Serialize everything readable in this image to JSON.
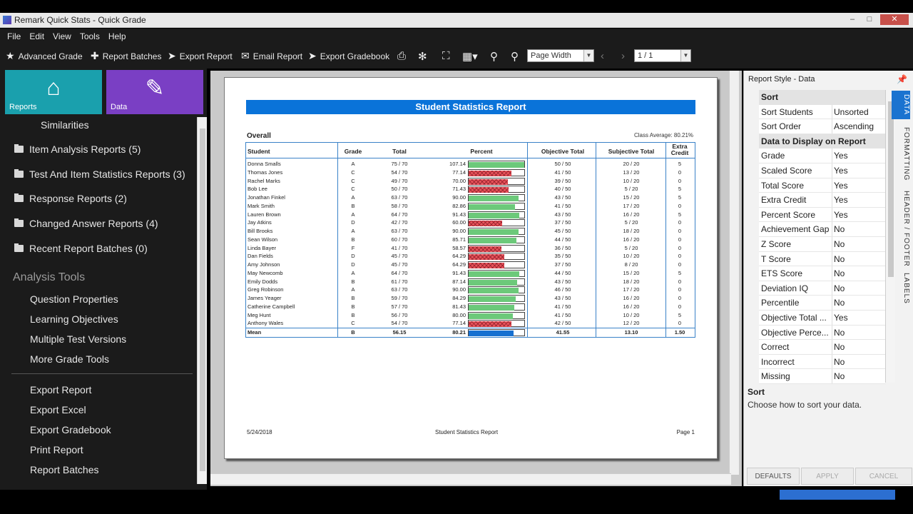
{
  "window": {
    "title": "Remark Quick Stats - Quick Grade"
  },
  "menu": [
    "File",
    "Edit",
    "View",
    "Tools",
    "Help"
  ],
  "toolbar": {
    "advanced_grade": "Advanced Grade",
    "report_batches": "Report Batches",
    "export_report": "Export Report",
    "email_report": "Email Report",
    "export_gradebook": "Export Gradebook",
    "zoom_mode": "Page Width",
    "page": "1 / 1"
  },
  "sidebar": {
    "tiles": [
      {
        "label": "Reports",
        "color": "#1aa0ad"
      },
      {
        "label": "Data",
        "color": "#7a3fc4"
      }
    ],
    "similarities": "Similarities",
    "folders": [
      "Item Analysis Reports (5)",
      "Test And Item Statistics Reports (3)",
      "Response Reports (2)",
      "Changed Answer Reports (4)",
      "Recent Report Batches (0)"
    ],
    "analysis_heading": "Analysis Tools",
    "analysis_items": [
      "Question Properties",
      "Learning Objectives",
      "Multiple Test Versions",
      "More Grade Tools"
    ],
    "export_items": [
      "Export Report",
      "Export Excel",
      "Export Gradebook",
      "Print Report",
      "Report Batches"
    ]
  },
  "report": {
    "title": "Student Statistics Report",
    "section": "Overall",
    "class_average": "Class Average: 80.21%",
    "columns": {
      "student": "Student",
      "grade": "Grade",
      "total": "Total",
      "percent": "Percent",
      "objective": "Objective Total",
      "subjective": "Subjective Total",
      "extra1": "Extra",
      "extra2": "Credit"
    },
    "rows": [
      {
        "name": "Donna Smalls",
        "grade": "A",
        "total": "75 / 70",
        "percent": "107.14",
        "pct": 1.0,
        "obj": "50 / 50",
        "subj": "20 / 20",
        "extra": "5"
      },
      {
        "name": "Thomas Jones",
        "grade": "C",
        "total": "54 / 70",
        "percent": "77.14",
        "pct": 0.7714,
        "obj": "41 / 50",
        "subj": "13 / 20",
        "extra": "0"
      },
      {
        "name": "Rachel Marks",
        "grade": "C",
        "total": "49 / 70",
        "percent": "70.00",
        "pct": 0.7,
        "obj": "39 / 50",
        "subj": "10 / 20",
        "extra": "0"
      },
      {
        "name": "Bob Lee",
        "grade": "C",
        "total": "50 / 70",
        "percent": "71.43",
        "pct": 0.7143,
        "obj": "40 / 50",
        "subj": "5 / 20",
        "extra": "5"
      },
      {
        "name": "Jonathan Finkel",
        "grade": "A",
        "total": "63 / 70",
        "percent": "90.00",
        "pct": 0.9,
        "obj": "43 / 50",
        "subj": "15 / 20",
        "extra": "5"
      },
      {
        "name": "Mark Smith",
        "grade": "B",
        "total": "58 / 70",
        "percent": "82.86",
        "pct": 0.8286,
        "obj": "41 / 50",
        "subj": "17 / 20",
        "extra": "0"
      },
      {
        "name": "Lauren Brown",
        "grade": "A",
        "total": "64 / 70",
        "percent": "91.43",
        "pct": 0.9143,
        "obj": "43 / 50",
        "subj": "16 / 20",
        "extra": "5"
      },
      {
        "name": "Jay Atkins",
        "grade": "D",
        "total": "42 / 70",
        "percent": "60.00",
        "pct": 0.6,
        "obj": "37 / 50",
        "subj": "5 / 20",
        "extra": "0"
      },
      {
        "name": "Bill Brooks",
        "grade": "A",
        "total": "63 / 70",
        "percent": "90.00",
        "pct": 0.9,
        "obj": "45 / 50",
        "subj": "18 / 20",
        "extra": "0"
      },
      {
        "name": "Sean Wilson",
        "grade": "B",
        "total": "60 / 70",
        "percent": "85.71",
        "pct": 0.8571,
        "obj": "44 / 50",
        "subj": "16 / 20",
        "extra": "0"
      },
      {
        "name": "Linda Bayer",
        "grade": "F",
        "total": "41 / 70",
        "percent": "58.57",
        "pct": 0.5857,
        "obj": "36 / 50",
        "subj": "5 / 20",
        "extra": "0"
      },
      {
        "name": "Dan Fields",
        "grade": "D",
        "total": "45 / 70",
        "percent": "64.29",
        "pct": 0.6429,
        "obj": "35 / 50",
        "subj": "10 / 20",
        "extra": "0"
      },
      {
        "name": "Amy Johnson",
        "grade": "D",
        "total": "45 / 70",
        "percent": "64.29",
        "pct": 0.6429,
        "obj": "37 / 50",
        "subj": "8 / 20",
        "extra": "0"
      },
      {
        "name": "May Newcomb",
        "grade": "A",
        "total": "64 / 70",
        "percent": "91.43",
        "pct": 0.9143,
        "obj": "44 / 50",
        "subj": "15 / 20",
        "extra": "5"
      },
      {
        "name": "Emily Dodds",
        "grade": "B",
        "total": "61 / 70",
        "percent": "87.14",
        "pct": 0.8714,
        "obj": "43 / 50",
        "subj": "18 / 20",
        "extra": "0"
      },
      {
        "name": "Greg Robinson",
        "grade": "A",
        "total": "63 / 70",
        "percent": "90.00",
        "pct": 0.9,
        "obj": "46 / 50",
        "subj": "17 / 20",
        "extra": "0"
      },
      {
        "name": "James Yeager",
        "grade": "B",
        "total": "59 / 70",
        "percent": "84.29",
        "pct": 0.8429,
        "obj": "43 / 50",
        "subj": "16 / 20",
        "extra": "0"
      },
      {
        "name": "Catherine Campbell",
        "grade": "B",
        "total": "57 / 70",
        "percent": "81.43",
        "pct": 0.8143,
        "obj": "41 / 50",
        "subj": "16 / 20",
        "extra": "0"
      },
      {
        "name": "Meg Hunt",
        "grade": "B",
        "total": "56 / 70",
        "percent": "80.00",
        "pct": 0.8,
        "obj": "41 / 50",
        "subj": "10 / 20",
        "extra": "5"
      },
      {
        "name": "Anthony Wales",
        "grade": "C",
        "total": "54 / 70",
        "percent": "77.14",
        "pct": 0.7714,
        "obj": "42 / 50",
        "subj": "12 / 20",
        "extra": "0"
      }
    ],
    "mean": {
      "name": "Mean",
      "grade": "B",
      "total": "56.15",
      "percent": "80.21",
      "pct": 0.8021,
      "obj": "41.55",
      "subj": "13.10",
      "extra": "1.50"
    },
    "footer": {
      "date": "5/24/2018",
      "center": "Student Statistics Report",
      "page": "Page 1"
    }
  },
  "panel": {
    "title": "Report Style - Data",
    "sort_cat": "Sort",
    "sort_rows": [
      {
        "k": "Sort Students",
        "v": "Unsorted"
      },
      {
        "k": "Sort Order",
        "v": "Ascending"
      }
    ],
    "display_cat": "Data to Display on Report",
    "display_rows": [
      {
        "k": "Grade",
        "v": "Yes"
      },
      {
        "k": "Scaled Score",
        "v": "Yes"
      },
      {
        "k": "Total Score",
        "v": "Yes"
      },
      {
        "k": "Extra Credit",
        "v": "Yes"
      },
      {
        "k": "Percent Score",
        "v": "Yes"
      },
      {
        "k": "Achievement Gap",
        "v": "No"
      },
      {
        "k": "Z Score",
        "v": "No"
      },
      {
        "k": "T Score",
        "v": "No"
      },
      {
        "k": "ETS Score",
        "v": "No"
      },
      {
        "k": "Deviation IQ",
        "v": "No"
      },
      {
        "k": "Percentile",
        "v": "No"
      },
      {
        "k": "Objective Total ...",
        "v": "Yes"
      },
      {
        "k": "Objective Perce...",
        "v": "No"
      },
      {
        "k": "Correct",
        "v": "No"
      },
      {
        "k": "Incorrect",
        "v": "No"
      },
      {
        "k": "Missing",
        "v": "No"
      }
    ],
    "tabs": [
      "DATA",
      "FORMATTING",
      "HEADER / FOOTER",
      "LABELS"
    ],
    "help_title": "Sort",
    "help_desc": "Choose how to sort your data.",
    "buttons": {
      "defaults": "DEFAULTS",
      "apply": "APPLY",
      "cancel": "CANCEL"
    }
  },
  "colors": {
    "good": "#6cc97a",
    "bad": "#e8525a",
    "accent": "#0a73d9"
  }
}
